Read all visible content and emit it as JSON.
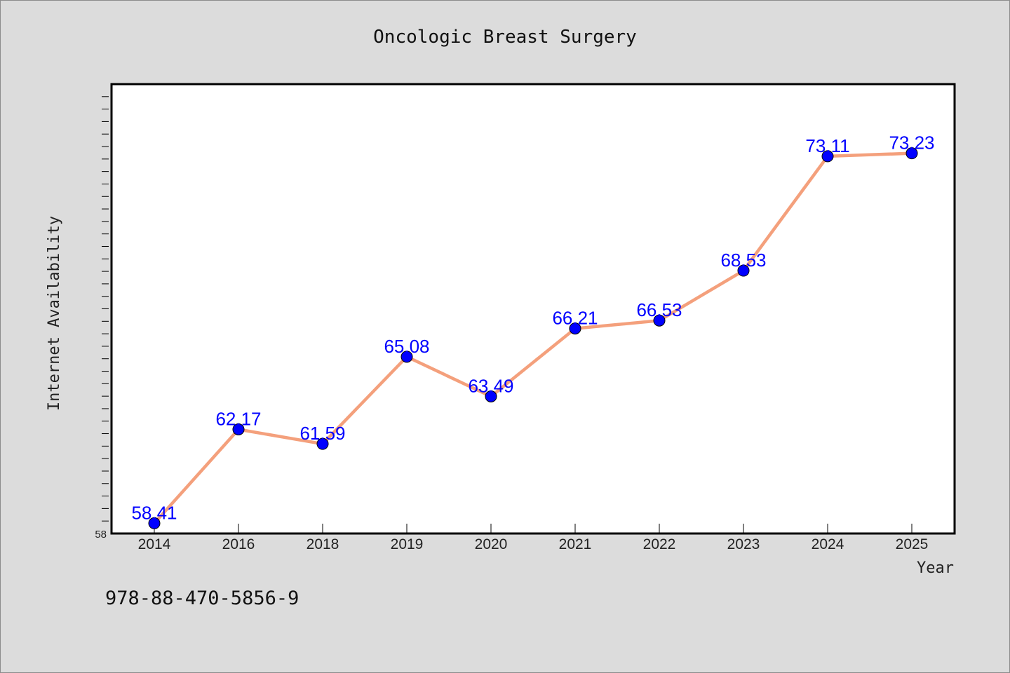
{
  "chart_data": {
    "type": "line",
    "title": "Oncologic Breast Surgery",
    "xlabel": "Year",
    "ylabel": "Internet Availability",
    "categories": [
      "2014",
      "2016",
      "2018",
      "2019",
      "2020",
      "2021",
      "2022",
      "2023",
      "2024",
      "2025"
    ],
    "series": [
      {
        "values": [
          58.41,
          62.17,
          61.59,
          65.08,
          63.49,
          66.21,
          66.53,
          68.53,
          73.11,
          73.23
        ],
        "labels": [
          "58.41",
          "62.17",
          "61.59",
          "65.08",
          "63.49",
          "66.21",
          "66.53",
          "68.53",
          "73.11",
          "73.23"
        ]
      }
    ],
    "ylim": [
      58,
      76
    ],
    "y_tick_labels": [
      "58"
    ],
    "grid": false,
    "legend": "none",
    "colors": {
      "line": "#f4a07c",
      "marker": "#0000ff",
      "label": "#0000ff",
      "background": "#dcdcdc",
      "plot_background": "#ffffff"
    }
  },
  "footer": {
    "isbn": "978-88-470-5856-9"
  }
}
